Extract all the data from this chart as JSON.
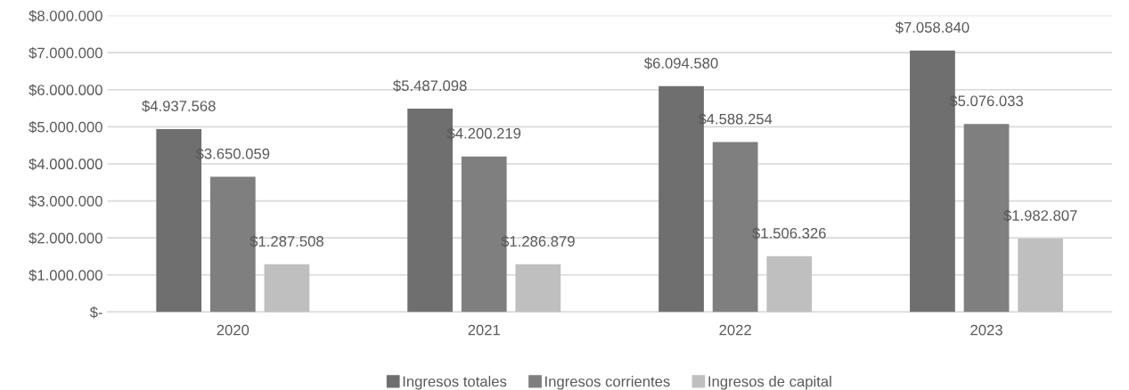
{
  "chart_data": {
    "type": "bar",
    "categories": [
      "2020",
      "2021",
      "2022",
      "2023"
    ],
    "series": [
      {
        "name": "Ingresos totales",
        "color": "#6f6f6f",
        "values": [
          4937568,
          5487098,
          6094580,
          7058840
        ],
        "value_labels": [
          "$4.937.568",
          "$5.487.098",
          "$6.094.580",
          "$7.058.840"
        ]
      },
      {
        "name": "Ingresos corrientes",
        "color": "#7f7f7f",
        "values": [
          3650059,
          4200219,
          4588254,
          5076033
        ],
        "value_labels": [
          "$3.650.059",
          "$4.200.219",
          "$4.588.254",
          "$5.076.033"
        ]
      },
      {
        "name": "Ingresos de capital",
        "color": "#bfbfbf",
        "values": [
          1287508,
          1286879,
          1506326,
          1982807
        ],
        "value_labels": [
          "$1.287.508",
          "$1.286.879",
          "$1.506.326",
          "$1.982.807"
        ]
      }
    ],
    "ylim": [
      0,
      8000000
    ],
    "yticks": [
      {
        "value": 0,
        "label": "$-"
      },
      {
        "value": 1000000,
        "label": "$1.000.000"
      },
      {
        "value": 2000000,
        "label": "$2.000.000"
      },
      {
        "value": 3000000,
        "label": "$3.000.000"
      },
      {
        "value": 4000000,
        "label": "$4.000.000"
      },
      {
        "value": 5000000,
        "label": "$5.000.000"
      },
      {
        "value": 6000000,
        "label": "$6.000.000"
      },
      {
        "value": 7000000,
        "label": "$7.000.000"
      },
      {
        "value": 8000000,
        "label": "$8.000.000"
      }
    ],
    "grid": "y",
    "legend": "bottom"
  }
}
